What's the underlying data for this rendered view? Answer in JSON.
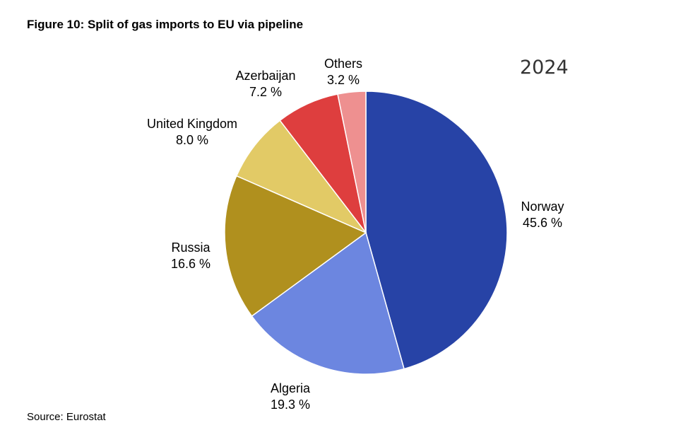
{
  "chart_data": {
    "type": "pie",
    "title": "Figure 10: Split of gas imports to EU via pipeline",
    "subtitle": "2024",
    "source": "Source: Eurostat",
    "unit": "%",
    "start_angle_deg": 0,
    "direction": "clockwise",
    "slices": [
      {
        "label": "Norway",
        "value": 45.6,
        "value_label": "45.6 %",
        "color": "#2743A6"
      },
      {
        "label": "Algeria",
        "value": 19.3,
        "value_label": "19.3 %",
        "color": "#6C86E0"
      },
      {
        "label": "Russia",
        "value": 16.6,
        "value_label": "16.6 %",
        "color": "#B0901E"
      },
      {
        "label": "United Kingdom",
        "value": 8.0,
        "value_label": "8.0 %",
        "color": "#E2CA66"
      },
      {
        "label": "Azerbaijan",
        "value": 7.2,
        "value_label": "7.2 %",
        "color": "#DE3E3E"
      },
      {
        "label": "Others",
        "value": 3.2,
        "value_label": "3.2 %",
        "color": "#EE9090"
      }
    ]
  }
}
